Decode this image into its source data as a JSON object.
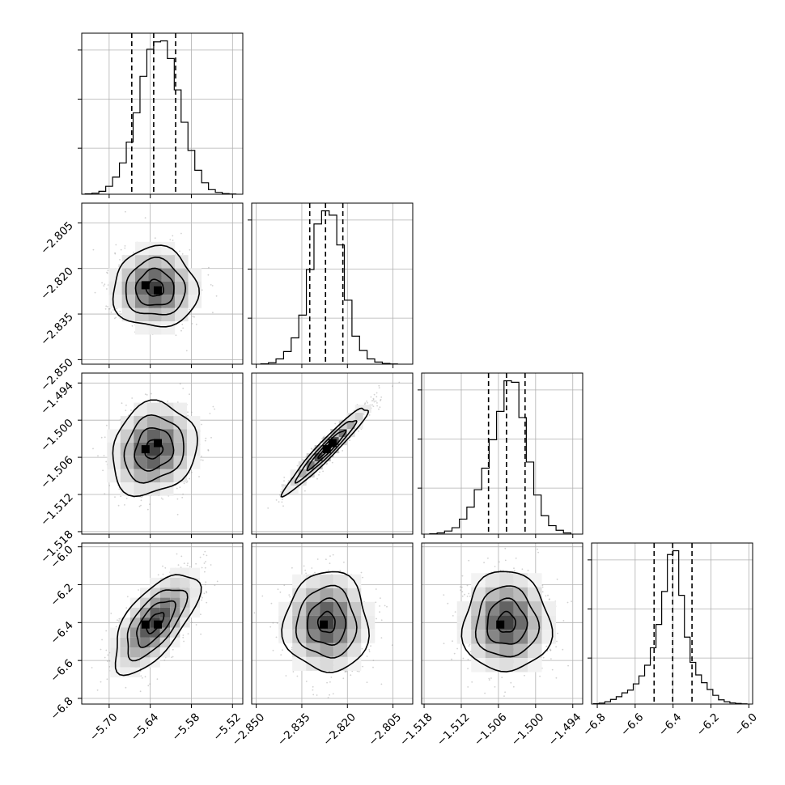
{
  "chart_data": {
    "type": "corner",
    "grid": true,
    "parameters": [
      {
        "range": [
          -5.74,
          -5.505
        ],
        "ticks": [
          -5.7,
          -5.64,
          -5.58,
          -5.52
        ],
        "tick_labels": [
          "−5.70",
          "−5.64",
          "−5.58",
          "−5.52"
        ],
        "quantiles": [
          -5.667,
          -5.635,
          -5.603
        ],
        "hist_bin_edges": [
          -5.735,
          -5.725,
          -5.715,
          -5.705,
          -5.695,
          -5.685,
          -5.675,
          -5.665,
          -5.655,
          -5.645,
          -5.635,
          -5.625,
          -5.615,
          -5.605,
          -5.595,
          -5.585,
          -5.575,
          -5.565,
          -5.555,
          -5.545,
          -5.535,
          -5.525,
          -5.515
        ],
        "hist_counts": [
          2,
          5,
          14,
          38,
          82,
          150,
          250,
          390,
          565,
          695,
          730,
          735,
          650,
          500,
          345,
          210,
          115,
          55,
          22,
          9,
          3,
          1
        ]
      },
      {
        "range": [
          -2.8515,
          -2.7985
        ],
        "ticks": [
          -2.85,
          -2.835,
          -2.82,
          -2.805
        ],
        "tick_labels": [
          "−2.850",
          "−2.835",
          "−2.820",
          "−2.805"
        ],
        "quantiles": [
          -2.8324,
          -2.8272,
          -2.8215
        ],
        "hist_bin_edges": [
          -2.8485,
          -2.846,
          -2.8435,
          -2.841,
          -2.8385,
          -2.836,
          -2.8335,
          -2.831,
          -2.8285,
          -2.826,
          -2.8235,
          -2.821,
          -2.8185,
          -2.816,
          -2.8135,
          -2.811,
          -2.8085,
          -2.806,
          -2.8035
        ],
        "hist_counts": [
          2,
          8,
          30,
          72,
          150,
          280,
          540,
          800,
          875,
          850,
          680,
          365,
          160,
          78,
          30,
          12,
          4,
          1
        ]
      },
      {
        "range": [
          -1.5184,
          -1.4924
        ],
        "ticks": [
          -1.518,
          -1.512,
          -1.506,
          -1.5,
          -1.494
        ],
        "tick_labels": [
          "−1.518",
          "−1.512",
          "−1.506",
          "−1.500",
          "−1.494"
        ],
        "quantiles": [
          -1.5076,
          -1.5047,
          -1.5017
        ],
        "hist_bin_edges": [
          -1.5171,
          -1.5159,
          -1.5147,
          -1.5135,
          -1.5123,
          -1.5111,
          -1.5099,
          -1.5087,
          -1.5075,
          -1.5063,
          -1.5051,
          -1.5039,
          -1.5027,
          -1.5015,
          -1.5003,
          -1.4991,
          -1.4979,
          -1.4967,
          -1.4955,
          -1.4943
        ],
        "hist_counts": [
          2,
          8,
          20,
          42,
          98,
          176,
          290,
          430,
          615,
          800,
          1000,
          990,
          760,
          470,
          255,
          120,
          55,
          25,
          8
        ]
      },
      {
        "range": [
          -6.83,
          -5.98
        ],
        "ticks": [
          -6.8,
          -6.6,
          -6.4,
          -6.2,
          -6.0
        ],
        "tick_labels": [
          "−6.8",
          "−6.6",
          "−6.4",
          "−6.2",
          "−6.0"
        ],
        "quantiles": [
          -6.5,
          -6.402,
          -6.3
        ],
        "hist_bin_edges": [
          -6.82,
          -6.79,
          -6.76,
          -6.73,
          -6.7,
          -6.67,
          -6.64,
          -6.61,
          -6.58,
          -6.55,
          -6.52,
          -6.49,
          -6.46,
          -6.43,
          -6.4,
          -6.37,
          -6.34,
          -6.31,
          -6.28,
          -6.25,
          -6.22,
          -6.19,
          -6.16,
          -6.13,
          -6.1,
          -6.07,
          -6.04,
          -6.01
        ],
        "hist_counts": [
          2,
          5,
          12,
          24,
          38,
          58,
          72,
          104,
          145,
          200,
          290,
          410,
          580,
          770,
          790,
          560,
          345,
          215,
          150,
          110,
          75,
          45,
          22,
          12,
          6,
          3,
          1
        ]
      }
    ],
    "joint": [
      {
        "row": 1,
        "col": 0,
        "center": [
          -5.633,
          -2.8265
        ],
        "sigma": [
          0.028,
          0.006
        ],
        "rho": 0.0,
        "dark_cells": [
          [
            -5.647,
            -2.8255
          ],
          [
            -5.629,
            -2.8272
          ]
        ]
      },
      {
        "row": 2,
        "col": 0,
        "center": [
          -5.635,
          -1.5047
        ],
        "sigma": [
          0.028,
          0.0034
        ],
        "rho": 0.15,
        "dark_cells": [
          [
            -5.647,
            -1.5047
          ],
          [
            -5.629,
            -1.5037
          ]
        ]
      },
      {
        "row": 2,
        "col": 1,
        "center": [
          -2.8268,
          -1.5047
        ],
        "sigma": [
          0.0063,
          0.0032
        ],
        "rho": 0.96,
        "dark_cells": [
          [
            -2.8268,
            -1.5047
          ],
          [
            -2.8249,
            -1.5037
          ]
        ]
      },
      {
        "row": 3,
        "col": 0,
        "center": [
          -5.633,
          -6.4
        ],
        "sigma": [
          0.028,
          0.12
        ],
        "rho": 0.65,
        "dark_cells": [
          [
            -5.647,
            -6.41
          ],
          [
            -5.629,
            -6.41
          ]
        ]
      },
      {
        "row": 3,
        "col": 1,
        "center": [
          -2.8268,
          -6.4
        ],
        "sigma": [
          0.0063,
          0.12
        ],
        "rho": 0.0,
        "dark_cells": [
          [
            -2.8278,
            -6.41
          ]
        ]
      },
      {
        "row": 3,
        "col": 2,
        "center": [
          -1.5047,
          -6.4
        ],
        "sigma": [
          0.0032,
          0.12
        ],
        "rho": 0.0,
        "dark_cells": [
          [
            -1.5057,
            -6.41
          ]
        ]
      }
    ]
  }
}
